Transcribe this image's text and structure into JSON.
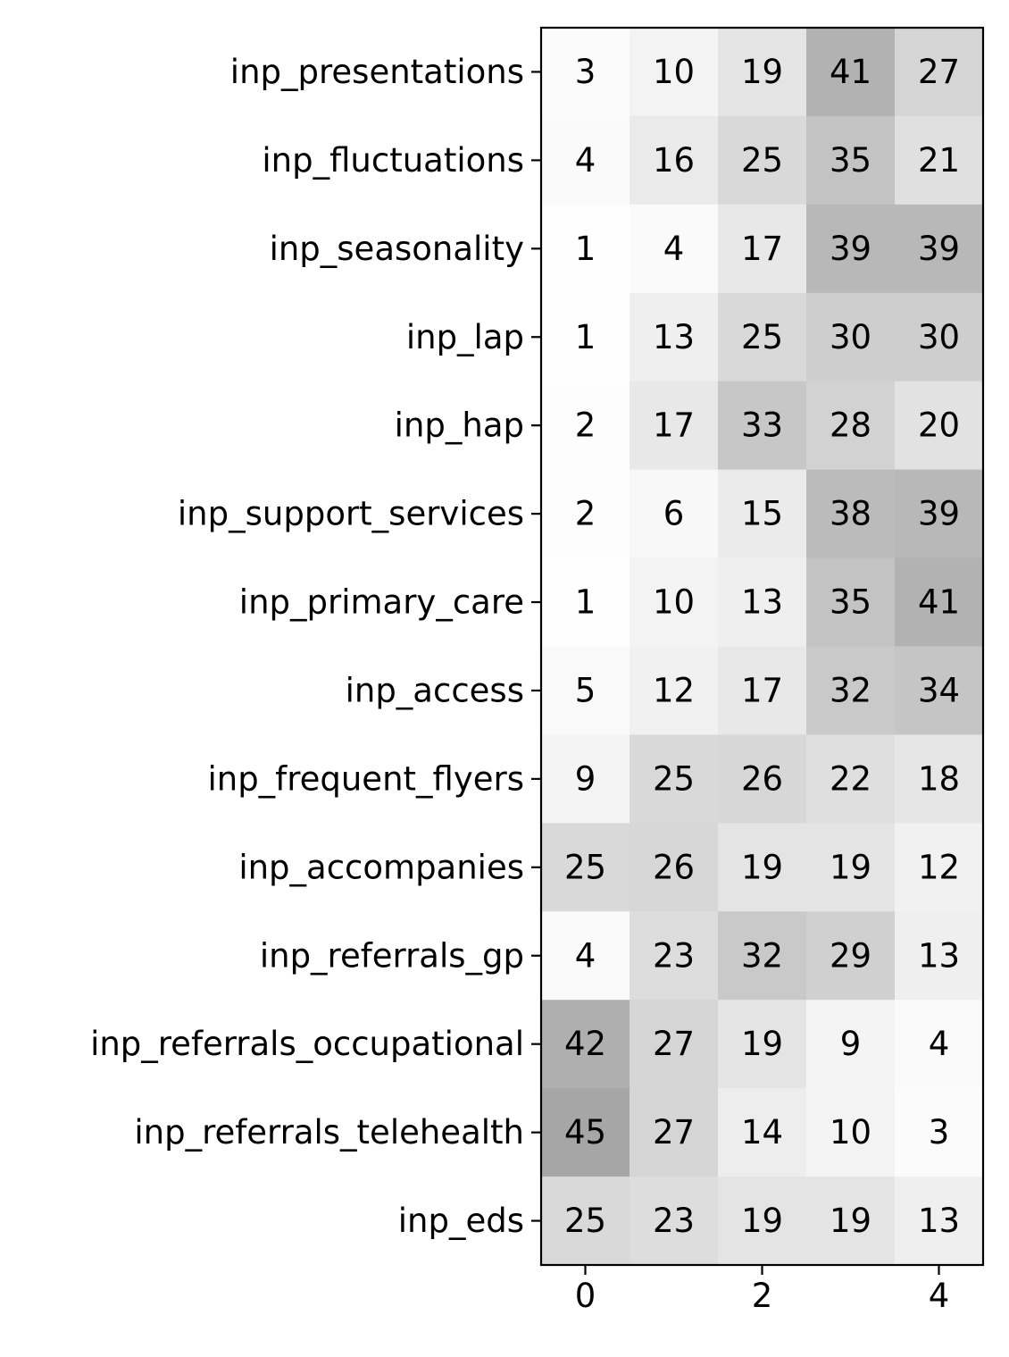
{
  "chart_data": {
    "type": "heatmap",
    "title": "",
    "xlabel": "",
    "ylabel": "",
    "colormap": "Greys",
    "value_range": [
      0,
      100
    ],
    "x_categories": [
      0,
      1,
      2,
      3,
      4
    ],
    "x_tick_labels": [
      "0",
      "2",
      "4"
    ],
    "x_tick_values": [
      0,
      2,
      4
    ],
    "y_categories": [
      "inp_presentations",
      "inp_fluctuations",
      "inp_seasonality",
      "inp_lap",
      "inp_hap",
      "inp_support_services",
      "inp_primary_care",
      "inp_access",
      "inp_frequent_flyers",
      "inp_accompanies",
      "inp_referrals_gp",
      "inp_referrals_occupational",
      "inp_referrals_telehealth",
      "inp_eds"
    ],
    "values": [
      [
        3,
        10,
        19,
        41,
        27
      ],
      [
        4,
        16,
        25,
        35,
        21
      ],
      [
        1,
        4,
        17,
        39,
        39
      ],
      [
        1,
        13,
        25,
        30,
        30
      ],
      [
        2,
        17,
        33,
        28,
        20
      ],
      [
        2,
        6,
        15,
        38,
        39
      ],
      [
        1,
        10,
        13,
        35,
        41
      ],
      [
        5,
        12,
        17,
        32,
        34
      ],
      [
        9,
        25,
        26,
        22,
        18
      ],
      [
        25,
        26,
        19,
        19,
        12
      ],
      [
        4,
        23,
        32,
        29,
        13
      ],
      [
        42,
        27,
        19,
        9,
        4
      ],
      [
        45,
        27,
        14,
        10,
        3
      ],
      [
        25,
        23,
        19,
        19,
        13
      ]
    ],
    "annotations": "cell values shown in each cell",
    "grid": false,
    "legend": "none"
  }
}
